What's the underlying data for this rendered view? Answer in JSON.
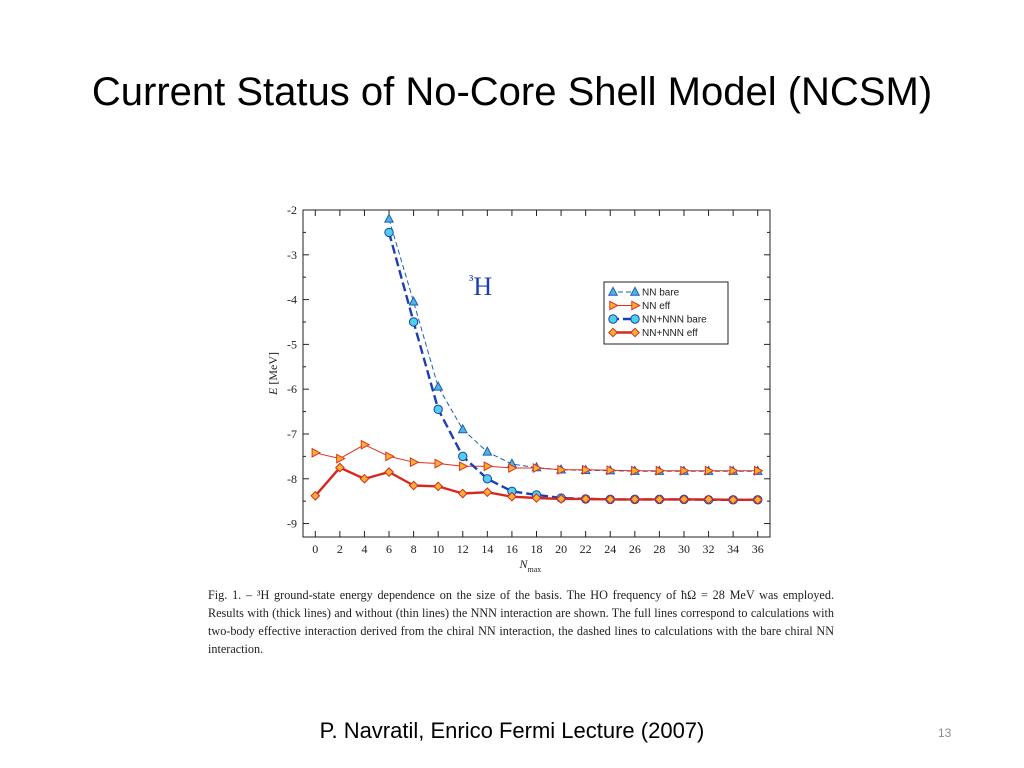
{
  "slide": {
    "title": "Current Status of No-Core Shell Model (NCSM)",
    "citation": "P. Navratil, Enrico Fermi Lecture (2007)",
    "slide_number": "13",
    "caption": "Fig. 1. – ³H ground-state energy dependence on the size of the basis. The HO frequency of ħΩ = 28 MeV was employed. Results with (thick lines) and without (thin lines) the NNN interaction are shown. The full lines correspond to calculations with two-body effective interaction derived from the chiral NN interaction, the dashed lines to calculations with the bare chiral NN interaction."
  },
  "chart_data": {
    "type": "line",
    "title": "³H",
    "xlabel": "N_max",
    "ylabel": "E [MeV]",
    "xlim": [
      -1,
      37
    ],
    "ylim": [
      -9.3,
      -2
    ],
    "xticks": [
      0,
      2,
      4,
      6,
      8,
      10,
      12,
      14,
      16,
      18,
      20,
      22,
      24,
      26,
      28,
      30,
      32,
      34,
      36
    ],
    "yticks": [
      -2,
      -3,
      -4,
      -5,
      -6,
      -7,
      -8,
      -9
    ],
    "grid": false,
    "legend_position": "top-right",
    "series": [
      {
        "name": "NN bare",
        "marker": "triangle-up",
        "line_style": "dashed-thin",
        "color": "#1a5fb4",
        "marker_fill": "#4fb3e8",
        "x": [
          6,
          8,
          10,
          12,
          14,
          16,
          18,
          20,
          22,
          24,
          26,
          28,
          30,
          32,
          34,
          36
        ],
        "values": [
          -2.2,
          -4.05,
          -5.95,
          -6.9,
          -7.4,
          -7.67,
          -7.75,
          -7.8,
          -7.81,
          -7.82,
          -7.83,
          -7.83,
          -7.83,
          -7.83,
          -7.83,
          -7.83
        ]
      },
      {
        "name": "NN eff",
        "marker": "triangle-right",
        "line_style": "solid-thin",
        "color": "#e0301e",
        "marker_fill": "#f9b233",
        "x": [
          0,
          2,
          4,
          6,
          8,
          10,
          12,
          14,
          16,
          18,
          20,
          22,
          24,
          26,
          28,
          30,
          32,
          34,
          36
        ],
        "values": [
          -7.42,
          -7.55,
          -7.24,
          -7.5,
          -7.63,
          -7.66,
          -7.72,
          -7.72,
          -7.76,
          -7.76,
          -7.8,
          -7.8,
          -7.81,
          -7.82,
          -7.82,
          -7.82,
          -7.82,
          -7.82,
          -7.82
        ]
      },
      {
        "name": "NN+NNN bare",
        "marker": "circle",
        "line_style": "dashed-thick",
        "color": "#1a3fb4",
        "marker_fill": "#4fd0e8",
        "x": [
          6,
          8,
          10,
          12,
          14,
          16,
          18,
          20,
          22,
          24,
          26,
          28,
          30,
          32,
          34,
          36
        ],
        "values": [
          -2.5,
          -4.5,
          -6.45,
          -7.5,
          -8.0,
          -8.28,
          -8.36,
          -8.43,
          -8.45,
          -8.46,
          -8.46,
          -8.46,
          -8.46,
          -8.47,
          -8.47,
          -8.47
        ]
      },
      {
        "name": "NN+NNN eff",
        "marker": "diamond",
        "line_style": "solid-thick",
        "color": "#d8281e",
        "marker_fill": "#f9b233",
        "x": [
          0,
          2,
          4,
          6,
          8,
          10,
          12,
          14,
          16,
          18,
          20,
          22,
          24,
          26,
          28,
          30,
          32,
          34,
          36
        ],
        "values": [
          -8.38,
          -7.75,
          -8.0,
          -7.85,
          -8.15,
          -8.17,
          -8.33,
          -8.3,
          -8.4,
          -8.43,
          -8.45,
          -8.45,
          -8.46,
          -8.46,
          -8.46,
          -8.46,
          -8.46,
          -8.47,
          -8.47
        ]
      }
    ]
  }
}
